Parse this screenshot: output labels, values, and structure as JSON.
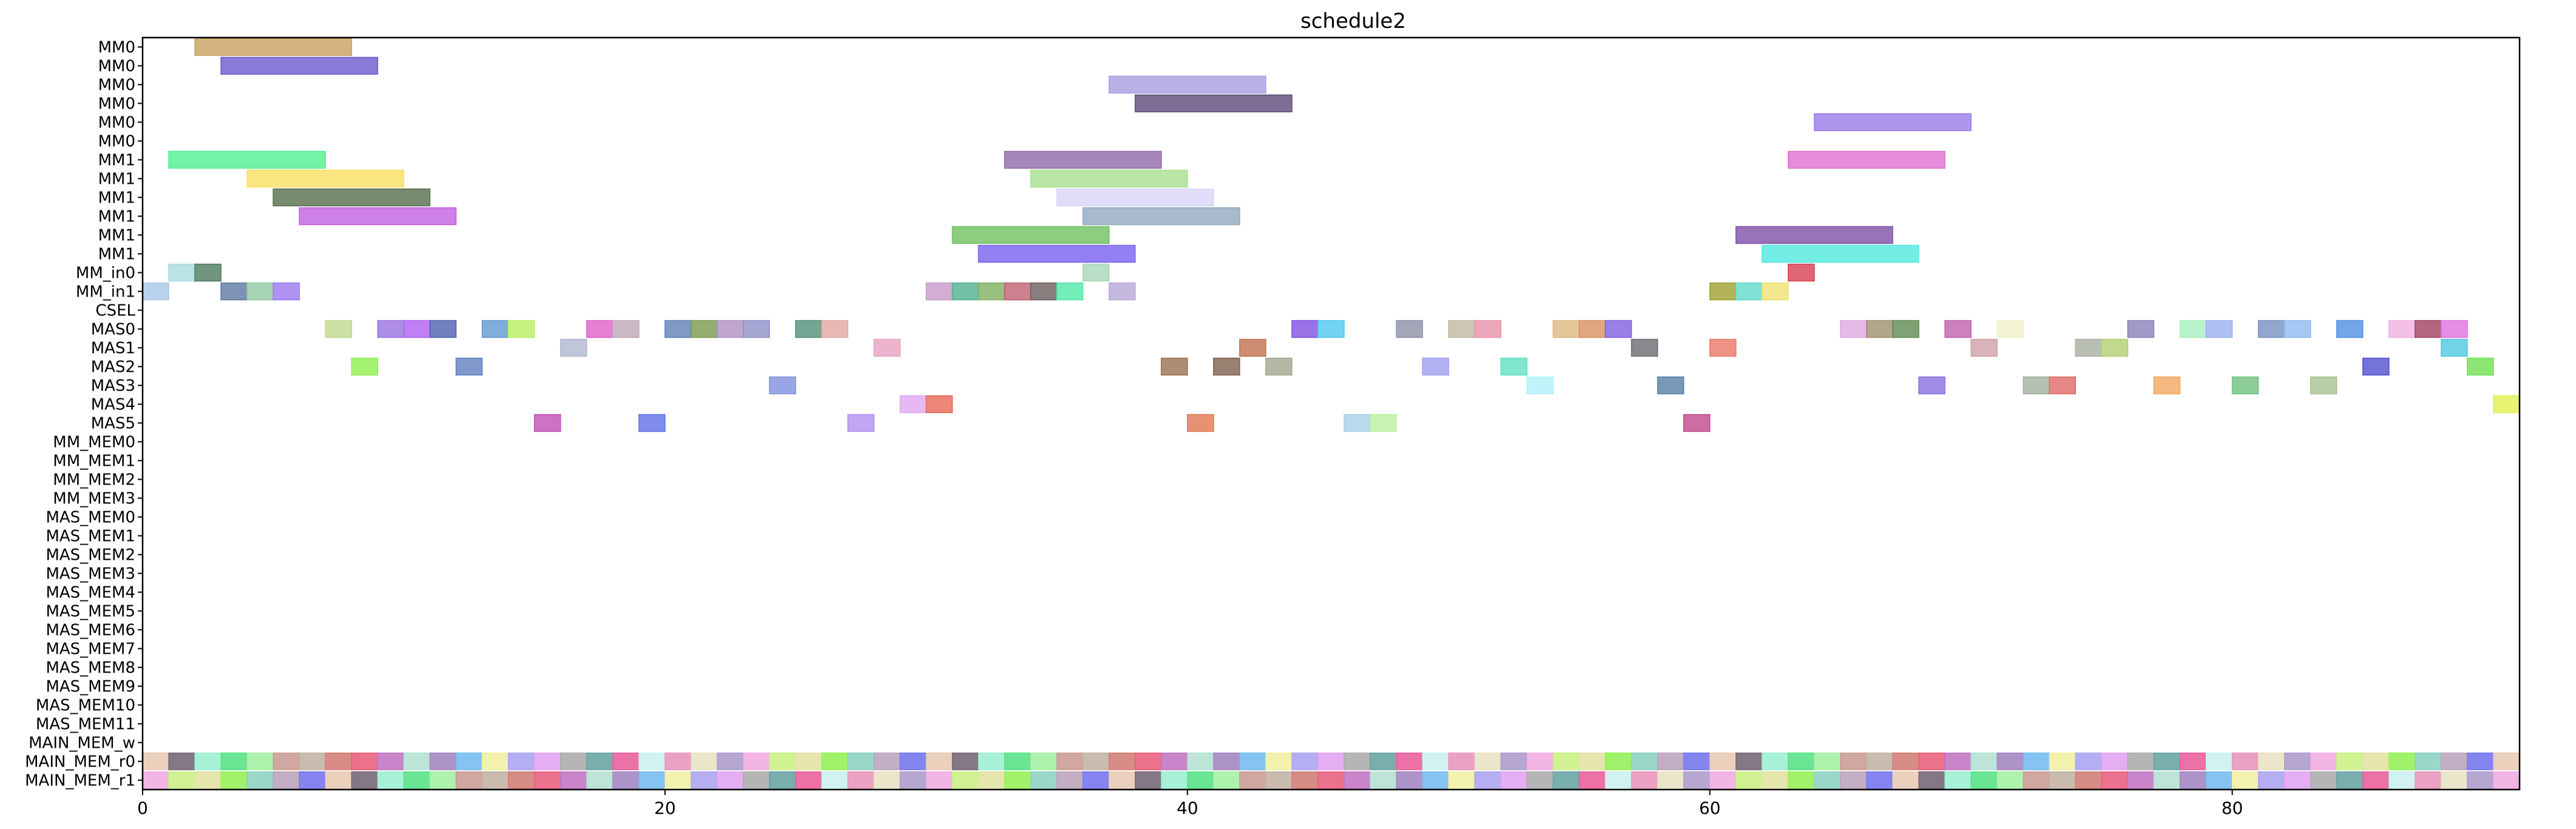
{
  "chart_data": {
    "type": "gantt",
    "title": "schedule2",
    "xlabel": "",
    "ylabel": "",
    "xlim": [
      0,
      91
    ],
    "x_ticks": [
      0,
      20,
      40,
      60,
      80
    ],
    "grid": false,
    "legend": "none",
    "rows": [
      "MM0",
      "MM0",
      "MM0",
      "MM0",
      "MM0",
      "MM0",
      "MM1",
      "MM1",
      "MM1",
      "MM1",
      "MM1",
      "MM1",
      "MM_in0",
      "MM_in1",
      "CSEL",
      "MAS0",
      "MAS1",
      "MAS2",
      "MAS3",
      "MAS4",
      "MAS5",
      "MM_MEM0",
      "MM_MEM1",
      "MM_MEM2",
      "MM_MEM3",
      "MAS_MEM0",
      "MAS_MEM1",
      "MAS_MEM2",
      "MAS_MEM3",
      "MAS_MEM4",
      "MAS_MEM5",
      "MAS_MEM6",
      "MAS_MEM7",
      "MAS_MEM8",
      "MAS_MEM9",
      "MAS_MEM10",
      "MAS_MEM11",
      "MAIN_MEM_w",
      "MAIN_MEM_r0",
      "MAIN_MEM_r1"
    ],
    "tasks": [
      {
        "row": 0,
        "start": 2,
        "end": 8,
        "color": "#c8a060"
      },
      {
        "row": 1,
        "start": 3,
        "end": 9,
        "color": "#6a5acd"
      },
      {
        "row": 2,
        "start": 37,
        "end": 43,
        "color": "#a89ee0"
      },
      {
        "row": 3,
        "start": 38,
        "end": 44,
        "color": "#5e4a7a"
      },
      {
        "row": 4,
        "start": 64,
        "end": 70,
        "color": "#9a7ae8"
      },
      {
        "row": 6,
        "start": 1,
        "end": 7,
        "color": "#50f090"
      },
      {
        "row": 6,
        "start": 33,
        "end": 39,
        "color": "#8e6aa8"
      },
      {
        "row": 6,
        "start": 63,
        "end": 69,
        "color": "#e070d0"
      },
      {
        "row": 7,
        "start": 4,
        "end": 10,
        "color": "#f8e060"
      },
      {
        "row": 7,
        "start": 34,
        "end": 40,
        "color": "#a8e090"
      },
      {
        "row": 8,
        "start": 5,
        "end": 11,
        "color": "#566e4e"
      },
      {
        "row": 8,
        "start": 35,
        "end": 41,
        "color": "#d8d4f8"
      },
      {
        "row": 9,
        "start": 6,
        "end": 12,
        "color": "#c060e0"
      },
      {
        "row": 9,
        "start": 36,
        "end": 42,
        "color": "#90a8c0"
      },
      {
        "row": 10,
        "start": 31,
        "end": 37,
        "color": "#70c060"
      },
      {
        "row": 10,
        "start": 61,
        "end": 67,
        "color": "#8050a8"
      },
      {
        "row": 11,
        "start": 32,
        "end": 38,
        "color": "#7a60f0"
      },
      {
        "row": 11,
        "start": 62,
        "end": 68,
        "color": "#50e8e0"
      },
      {
        "row": 12,
        "start": 1,
        "end": 2,
        "color": "#a8dce0"
      },
      {
        "row": 12,
        "start": 2,
        "end": 3,
        "color": "#4e7a5e"
      },
      {
        "row": 12,
        "start": 36,
        "end": 37,
        "color": "#a8d8b8"
      },
      {
        "row": 12,
        "start": 63,
        "end": 64,
        "color": "#d84050"
      },
      {
        "row": 13,
        "start": 0,
        "end": 1,
        "color": "#a8c8e8"
      },
      {
        "row": 13,
        "start": 3,
        "end": 4,
        "color": "#5e78a0"
      },
      {
        "row": 13,
        "start": 4,
        "end": 5,
        "color": "#90c8a0"
      },
      {
        "row": 13,
        "start": 5,
        "end": 6,
        "color": "#9a78f0"
      },
      {
        "row": 13,
        "start": 30,
        "end": 31,
        "color": "#c898c8"
      },
      {
        "row": 13,
        "start": 31,
        "end": 32,
        "color": "#50b090"
      },
      {
        "row": 13,
        "start": 32,
        "end": 33,
        "color": "#80b060"
      },
      {
        "row": 13,
        "start": 33,
        "end": 34,
        "color": "#c06070"
      },
      {
        "row": 13,
        "start": 34,
        "end": 35,
        "color": "#6e5e5e"
      },
      {
        "row": 13,
        "start": 35,
        "end": 36,
        "color": "#50e8a8"
      },
      {
        "row": 13,
        "start": 37,
        "end": 38,
        "color": "#b8a8d8"
      },
      {
        "row": 13,
        "start": 60,
        "end": 61,
        "color": "#a0a030"
      },
      {
        "row": 13,
        "start": 61,
        "end": 62,
        "color": "#60d8c8"
      },
      {
        "row": 13,
        "start": 62,
        "end": 63,
        "color": "#f0e070"
      },
      {
        "row": 15,
        "start": 7,
        "end": 8,
        "color": "#c0d890"
      },
      {
        "row": 15,
        "start": 9,
        "end": 10,
        "color": "#9a70e0"
      },
      {
        "row": 15,
        "start": 10,
        "end": 11,
        "color": "#b060f0"
      },
      {
        "row": 15,
        "start": 11,
        "end": 12,
        "color": "#5060b0"
      },
      {
        "row": 15,
        "start": 13,
        "end": 14,
        "color": "#6098d0"
      },
      {
        "row": 15,
        "start": 14,
        "end": 15,
        "color": "#b8f060"
      },
      {
        "row": 15,
        "start": 17,
        "end": 18,
        "color": "#e060c8"
      },
      {
        "row": 15,
        "start": 18,
        "end": 19,
        "color": "#c0a8b8"
      },
      {
        "row": 15,
        "start": 20,
        "end": 21,
        "color": "#6080b8"
      },
      {
        "row": 15,
        "start": 21,
        "end": 22,
        "color": "#789850"
      },
      {
        "row": 15,
        "start": 22,
        "end": 23,
        "color": "#b090c0"
      },
      {
        "row": 15,
        "start": 23,
        "end": 24,
        "color": "#9090c8"
      },
      {
        "row": 15,
        "start": 25,
        "end": 26,
        "color": "#509078"
      },
      {
        "row": 15,
        "start": 26,
        "end": 27,
        "color": "#e0a8a0"
      },
      {
        "row": 15,
        "start": 44,
        "end": 45,
        "color": "#8050e0"
      },
      {
        "row": 15,
        "start": 45,
        "end": 46,
        "color": "#50c8f0"
      },
      {
        "row": 15,
        "start": 48,
        "end": 49,
        "color": "#9090a8"
      },
      {
        "row": 15,
        "start": 50,
        "end": 51,
        "color": "#c0b8a0"
      },
      {
        "row": 15,
        "start": 51,
        "end": 52,
        "color": "#e890a8"
      },
      {
        "row": 15,
        "start": 54,
        "end": 55,
        "color": "#e0b880"
      },
      {
        "row": 15,
        "start": 55,
        "end": 56,
        "color": "#d89060"
      },
      {
        "row": 15,
        "start": 56,
        "end": 57,
        "color": "#8060e0"
      },
      {
        "row": 15,
        "start": 65,
        "end": 66,
        "color": "#e0a8e0"
      },
      {
        "row": 15,
        "start": 66,
        "end": 67,
        "color": "#a09070"
      },
      {
        "row": 15,
        "start": 67,
        "end": 68,
        "color": "#608a50"
      },
      {
        "row": 15,
        "start": 69,
        "end": 70,
        "color": "#c060b0"
      },
      {
        "row": 15,
        "start": 71,
        "end": 72,
        "color": "#f0f0c8"
      },
      {
        "row": 15,
        "start": 76,
        "end": 77,
        "color": "#8a80b8"
      },
      {
        "row": 15,
        "start": 78,
        "end": 79,
        "color": "#a8f0c0"
      },
      {
        "row": 15,
        "start": 79,
        "end": 80,
        "color": "#9ab0f0"
      },
      {
        "row": 15,
        "start": 81,
        "end": 82,
        "color": "#7890c0"
      },
      {
        "row": 15,
        "start": 82,
        "end": 83,
        "color": "#90b8f0"
      },
      {
        "row": 15,
        "start": 84,
        "end": 85,
        "color": "#5090e0"
      },
      {
        "row": 15,
        "start": 86,
        "end": 87,
        "color": "#f0b0e0"
      },
      {
        "row": 15,
        "start": 87,
        "end": 88,
        "color": "#a04060"
      },
      {
        "row": 15,
        "start": 88,
        "end": 89,
        "color": "#e070e0"
      },
      {
        "row": 16,
        "start": 16,
        "end": 17,
        "color": "#b0b8d0"
      },
      {
        "row": 16,
        "start": 28,
        "end": 29,
        "color": "#e8a0c0"
      },
      {
        "row": 16,
        "start": 42,
        "end": 43,
        "color": "#c07050"
      },
      {
        "row": 16,
        "start": 57,
        "end": 58,
        "color": "#6e6a70"
      },
      {
        "row": 16,
        "start": 60,
        "end": 61,
        "color": "#e87868"
      },
      {
        "row": 16,
        "start": 70,
        "end": 71,
        "color": "#d0a0a8"
      },
      {
        "row": 16,
        "start": 74,
        "end": 75,
        "color": "#a8b0a0"
      },
      {
        "row": 16,
        "start": 75,
        "end": 76,
        "color": "#b0d070"
      },
      {
        "row": 16,
        "start": 88,
        "end": 89,
        "color": "#50c8e0"
      },
      {
        "row": 17,
        "start": 8,
        "end": 9,
        "color": "#90f050"
      },
      {
        "row": 17,
        "start": 12,
        "end": 13,
        "color": "#6080c0"
      },
      {
        "row": 17,
        "start": 39,
        "end": 40,
        "color": "#987050"
      },
      {
        "row": 17,
        "start": 41,
        "end": 42,
        "color": "#80604e"
      },
      {
        "row": 17,
        "start": 43,
        "end": 44,
        "color": "#a0a890"
      },
      {
        "row": 17,
        "start": 49,
        "end": 50,
        "color": "#a0a0f0"
      },
      {
        "row": 17,
        "start": 52,
        "end": 53,
        "color": "#60e0c0"
      },
      {
        "row": 17,
        "start": 85,
        "end": 86,
        "color": "#5050d0"
      },
      {
        "row": 17,
        "start": 89,
        "end": 90,
        "color": "#70e050"
      },
      {
        "row": 18,
        "start": 24,
        "end": 25,
        "color": "#8090e0"
      },
      {
        "row": 18,
        "start": 53,
        "end": 54,
        "color": "#b0f0f8"
      },
      {
        "row": 18,
        "start": 58,
        "end": 59,
        "color": "#5880a8"
      },
      {
        "row": 18,
        "start": 68,
        "end": 69,
        "color": "#8a70e0"
      },
      {
        "row": 18,
        "start": 72,
        "end": 73,
        "color": "#a0b0a0"
      },
      {
        "row": 18,
        "start": 73,
        "end": 74,
        "color": "#e06868"
      },
      {
        "row": 18,
        "start": 77,
        "end": 78,
        "color": "#f0a860"
      },
      {
        "row": 18,
        "start": 80,
        "end": 81,
        "color": "#70c080"
      },
      {
        "row": 18,
        "start": 83,
        "end": 84,
        "color": "#a8c090"
      },
      {
        "row": 19,
        "start": 29,
        "end": 30,
        "color": "#e0a8f0"
      },
      {
        "row": 19,
        "start": 30,
        "end": 31,
        "color": "#e86858"
      },
      {
        "row": 19,
        "start": 90,
        "end": 91,
        "color": "#e0f050"
      },
      {
        "row": 20,
        "start": 15,
        "end": 16,
        "color": "#c050b8"
      },
      {
        "row": 20,
        "start": 19,
        "end": 20,
        "color": "#6070e8"
      },
      {
        "row": 20,
        "start": 27,
        "end": 28,
        "color": "#b090f0"
      },
      {
        "row": 20,
        "start": 40,
        "end": 41,
        "color": "#e07850"
      },
      {
        "row": 20,
        "start": 46,
        "end": 47,
        "color": "#a8d0e8"
      },
      {
        "row": 20,
        "start": 47,
        "end": 48,
        "color": "#b8f0a0"
      },
      {
        "row": 20,
        "start": 59,
        "end": 60,
        "color": "#c04890"
      }
    ]
  }
}
